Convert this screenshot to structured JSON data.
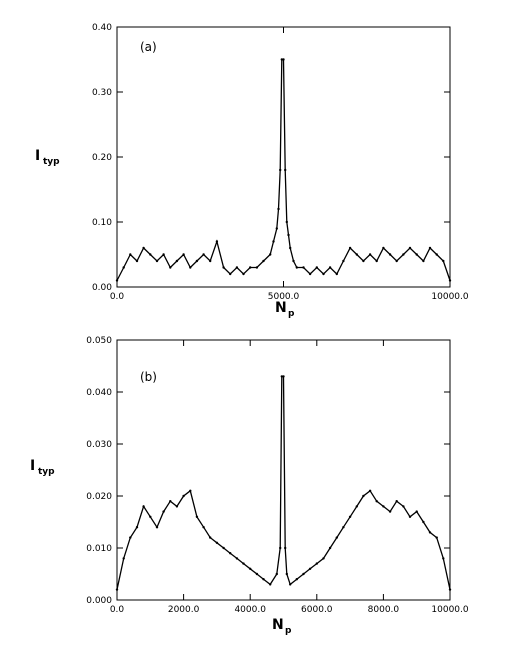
{
  "chart_data": [
    {
      "type": "line",
      "panel_label": "(a)",
      "xlabel": "N",
      "xlabel_sub": "p",
      "ylabel": "I",
      "ylabel_sub": "typ",
      "xlim": [
        0,
        10000
      ],
      "ylim": [
        0,
        0.4
      ],
      "xticks": [
        0,
        5000,
        10000
      ],
      "xtick_labels": [
        "0.0",
        "5000.0",
        "10000.0"
      ],
      "yticks": [
        0,
        0.1,
        0.2,
        0.3,
        0.4
      ],
      "ytick_labels": [
        "0.00",
        "0.10",
        "0.20",
        "0.30",
        "0.40"
      ],
      "grid": false,
      "series": [
        {
          "x": [
            0,
            200,
            400,
            600,
            800,
            1000,
            1200,
            1400,
            1600,
            1800,
            2000,
            2200,
            2400,
            2600,
            2800,
            3000,
            3200,
            3400,
            3600,
            3800,
            4000,
            4200,
            4400,
            4600,
            4700,
            4800,
            4850,
            4900,
            4950,
            5000,
            5050,
            5100,
            5150,
            5200,
            5300,
            5400,
            5600,
            5800,
            6000,
            6200,
            6400,
            6600,
            6800,
            7000,
            7200,
            7400,
            7600,
            7800,
            8000,
            8200,
            8400,
            8600,
            8800,
            9000,
            9200,
            9400,
            9600,
            9800,
            10000
          ],
          "y": [
            0.01,
            0.03,
            0.05,
            0.04,
            0.06,
            0.05,
            0.04,
            0.05,
            0.03,
            0.04,
            0.05,
            0.03,
            0.04,
            0.05,
            0.04,
            0.07,
            0.03,
            0.02,
            0.03,
            0.02,
            0.03,
            0.03,
            0.04,
            0.05,
            0.07,
            0.09,
            0.12,
            0.18,
            0.35,
            0.35,
            0.18,
            0.1,
            0.08,
            0.06,
            0.04,
            0.03,
            0.03,
            0.02,
            0.03,
            0.02,
            0.03,
            0.02,
            0.04,
            0.06,
            0.05,
            0.04,
            0.05,
            0.04,
            0.06,
            0.05,
            0.04,
            0.05,
            0.06,
            0.05,
            0.04,
            0.06,
            0.05,
            0.04,
            0.01
          ]
        }
      ]
    },
    {
      "type": "line",
      "panel_label": "(b)",
      "xlabel": "N",
      "xlabel_sub": "p",
      "ylabel": "I",
      "ylabel_sub": "typ",
      "xlim": [
        0,
        10000
      ],
      "ylim": [
        0,
        0.05
      ],
      "xticks": [
        0,
        2000,
        4000,
        6000,
        8000,
        10000
      ],
      "xtick_labels": [
        "0.0",
        "2000.0",
        "4000.0",
        "6000.0",
        "8000.0",
        "10000.0"
      ],
      "yticks": [
        0,
        0.01,
        0.02,
        0.03,
        0.04,
        0.05
      ],
      "ytick_labels": [
        "0.000",
        "0.010",
        "0.020",
        "0.030",
        "0.040",
        "0.050"
      ],
      "grid": false,
      "series": [
        {
          "x": [
            0,
            200,
            400,
            600,
            800,
            1000,
            1200,
            1400,
            1600,
            1800,
            2000,
            2200,
            2400,
            2600,
            2800,
            3000,
            3200,
            3400,
            3600,
            3800,
            4000,
            4200,
            4400,
            4600,
            4800,
            4900,
            4950,
            5000,
            5050,
            5100,
            5200,
            5400,
            5600,
            5800,
            6000,
            6200,
            6400,
            6600,
            6800,
            7000,
            7200,
            7400,
            7600,
            7800,
            8000,
            8200,
            8400,
            8600,
            8800,
            9000,
            9200,
            9400,
            9600,
            9800,
            10000
          ],
          "y": [
            0.002,
            0.008,
            0.012,
            0.014,
            0.018,
            0.016,
            0.014,
            0.017,
            0.019,
            0.018,
            0.02,
            0.021,
            0.016,
            0.014,
            0.012,
            0.011,
            0.01,
            0.009,
            0.008,
            0.007,
            0.006,
            0.005,
            0.004,
            0.003,
            0.005,
            0.01,
            0.043,
            0.043,
            0.01,
            0.005,
            0.003,
            0.004,
            0.005,
            0.006,
            0.007,
            0.008,
            0.01,
            0.012,
            0.014,
            0.016,
            0.018,
            0.02,
            0.021,
            0.019,
            0.018,
            0.017,
            0.019,
            0.018,
            0.016,
            0.017,
            0.015,
            0.013,
            0.012,
            0.008,
            0.002
          ]
        }
      ]
    }
  ]
}
